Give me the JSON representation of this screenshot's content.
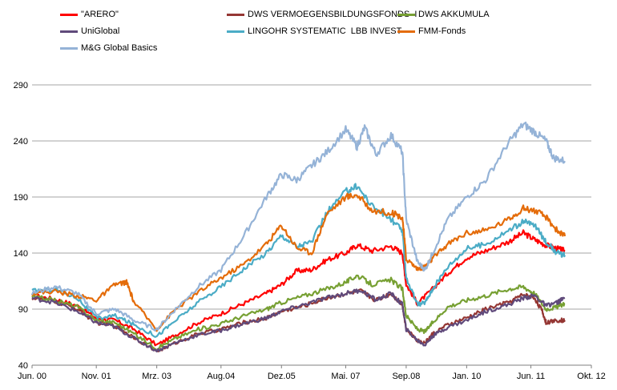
{
  "chart_data": {
    "type": "line",
    "title": "",
    "xlabel": "",
    "ylabel": "",
    "ylim": [
      40,
      300
    ],
    "yticks": [
      40,
      90,
      140,
      190,
      240,
      290
    ],
    "x_ticks": [
      {
        "label": "Jun. 00",
        "t": 0
      },
      {
        "label": "Nov. 01",
        "t": 17
      },
      {
        "label": "Mrz. 03",
        "t": 33
      },
      {
        "label": "Aug.04",
        "t": 50
      },
      {
        "label": "Dez.05",
        "t": 66
      },
      {
        "label": "Mai. 07",
        "t": 83
      },
      {
        "label": "Sep.08",
        "t": 99
      },
      {
        "label": "Jan. 10",
        "t": 115
      },
      {
        "label": "Jun. 11",
        "t": 132
      },
      {
        "label": "Okt. 12",
        "t": 148
      }
    ],
    "x_range": [
      0,
      148
    ],
    "grid": true,
    "legend_position": "top",
    "series": [
      {
        "name": "\"ARERO\"",
        "color": "#ff0000",
        "points": [
          [
            0,
            102
          ],
          [
            6,
            99
          ],
          [
            12,
            93
          ],
          [
            17,
            82
          ],
          [
            22,
            80
          ],
          [
            27,
            72
          ],
          [
            33,
            58
          ],
          [
            38,
            67
          ],
          [
            44,
            78
          ],
          [
            50,
            86
          ],
          [
            56,
            95
          ],
          [
            62,
            104
          ],
          [
            66,
            112
          ],
          [
            70,
            124
          ],
          [
            74,
            125
          ],
          [
            78,
            134
          ],
          [
            83,
            140
          ],
          [
            86,
            147
          ],
          [
            90,
            142
          ],
          [
            95,
            146
          ],
          [
            98,
            140
          ],
          [
            99,
            112
          ],
          [
            102,
            95
          ],
          [
            106,
            108
          ],
          [
            110,
            122
          ],
          [
            115,
            136
          ],
          [
            120,
            142
          ],
          [
            126,
            150
          ],
          [
            130,
            158
          ],
          [
            133,
            152
          ],
          [
            136,
            147
          ],
          [
            139,
            144
          ],
          [
            141,
            142
          ]
        ]
      },
      {
        "name": "DWS VERMOEGENSBILDUNGSFONDS  I",
        "color": "#953734",
        "points": [
          [
            0,
            100
          ],
          [
            6,
            97
          ],
          [
            12,
            90
          ],
          [
            17,
            78
          ],
          [
            22,
            75
          ],
          [
            27,
            65
          ],
          [
            33,
            52
          ],
          [
            38,
            60
          ],
          [
            44,
            68
          ],
          [
            50,
            72
          ],
          [
            56,
            78
          ],
          [
            62,
            82
          ],
          [
            66,
            88
          ],
          [
            72,
            93
          ],
          [
            78,
            100
          ],
          [
            83,
            104
          ],
          [
            87,
            106
          ],
          [
            91,
            98
          ],
          [
            95,
            104
          ],
          [
            98,
            94
          ],
          [
            99,
            72
          ],
          [
            102,
            62
          ],
          [
            104,
            60
          ],
          [
            106,
            68
          ],
          [
            110,
            76
          ],
          [
            115,
            82
          ],
          [
            120,
            90
          ],
          [
            126,
            96
          ],
          [
            130,
            103
          ],
          [
            133,
            100
          ],
          [
            135,
            88
          ],
          [
            136,
            78
          ],
          [
            139,
            80
          ],
          [
            141,
            80
          ]
        ]
      },
      {
        "name": "DWS AKKUMULA",
        "color": "#77a033",
        "points": [
          [
            0,
            101
          ],
          [
            6,
            98
          ],
          [
            12,
            92
          ],
          [
            17,
            80
          ],
          [
            22,
            78
          ],
          [
            27,
            68
          ],
          [
            33,
            55
          ],
          [
            38,
            64
          ],
          [
            44,
            72
          ],
          [
            50,
            77
          ],
          [
            56,
            84
          ],
          [
            62,
            90
          ],
          [
            66,
            96
          ],
          [
            72,
            102
          ],
          [
            78,
            108
          ],
          [
            83,
            114
          ],
          [
            86,
            120
          ],
          [
            90,
            112
          ],
          [
            95,
            116
          ],
          [
            98,
            108
          ],
          [
            99,
            84
          ],
          [
            102,
            72
          ],
          [
            104,
            70
          ],
          [
            106,
            78
          ],
          [
            110,
            92
          ],
          [
            115,
            98
          ],
          [
            120,
            102
          ],
          [
            126,
            108
          ],
          [
            130,
            110
          ],
          [
            133,
            104
          ],
          [
            136,
            90
          ],
          [
            139,
            92
          ],
          [
            141,
            95
          ]
        ]
      },
      {
        "name": "UniGlobal",
        "color": "#604a7b",
        "points": [
          [
            0,
            100
          ],
          [
            6,
            96
          ],
          [
            12,
            88
          ],
          [
            17,
            78
          ],
          [
            22,
            74
          ],
          [
            27,
            64
          ],
          [
            33,
            53
          ],
          [
            38,
            60
          ],
          [
            44,
            67
          ],
          [
            50,
            71
          ],
          [
            56,
            77
          ],
          [
            62,
            82
          ],
          [
            66,
            88
          ],
          [
            72,
            94
          ],
          [
            78,
            100
          ],
          [
            83,
            104
          ],
          [
            87,
            107
          ],
          [
            91,
            98
          ],
          [
            95,
            104
          ],
          [
            98,
            94
          ],
          [
            99,
            72
          ],
          [
            102,
            62
          ],
          [
            104,
            58
          ],
          [
            106,
            66
          ],
          [
            110,
            74
          ],
          [
            115,
            80
          ],
          [
            120,
            88
          ],
          [
            126,
            94
          ],
          [
            130,
            100
          ],
          [
            133,
            102
          ],
          [
            136,
            93
          ],
          [
            139,
            96
          ],
          [
            141,
            100
          ]
        ]
      },
      {
        "name": "LINGOHR SYSTEMATIC  LBB INVEST",
        "color": "#4bacc6",
        "points": [
          [
            0,
            106
          ],
          [
            6,
            108
          ],
          [
            12,
            100
          ],
          [
            17,
            82
          ],
          [
            22,
            84
          ],
          [
            27,
            76
          ],
          [
            33,
            66
          ],
          [
            38,
            80
          ],
          [
            44,
            96
          ],
          [
            50,
            110
          ],
          [
            56,
            126
          ],
          [
            62,
            140
          ],
          [
            66,
            156
          ],
          [
            70,
            146
          ],
          [
            74,
            150
          ],
          [
            78,
            176
          ],
          [
            83,
            195
          ],
          [
            86,
            200
          ],
          [
            90,
            182
          ],
          [
            95,
            170
          ],
          [
            98,
            160
          ],
          [
            99,
            118
          ],
          [
            102,
            94
          ],
          [
            104,
            96
          ],
          [
            106,
            108
          ],
          [
            110,
            128
          ],
          [
            115,
            144
          ],
          [
            120,
            148
          ],
          [
            126,
            160
          ],
          [
            130,
            168
          ],
          [
            133,
            165
          ],
          [
            136,
            150
          ],
          [
            139,
            140
          ],
          [
            141,
            138
          ]
        ]
      },
      {
        "name": "FMM-Fonds",
        "color": "#e46c0a",
        "points": [
          [
            0,
            104
          ],
          [
            6,
            106
          ],
          [
            12,
            102
          ],
          [
            17,
            98
          ],
          [
            22,
            112
          ],
          [
            25,
            114
          ],
          [
            27,
            96
          ],
          [
            33,
            72
          ],
          [
            38,
            90
          ],
          [
            44,
            105
          ],
          [
            50,
            118
          ],
          [
            56,
            130
          ],
          [
            62,
            148
          ],
          [
            66,
            165
          ],
          [
            70,
            145
          ],
          [
            74,
            140
          ],
          [
            78,
            175
          ],
          [
            83,
            190
          ],
          [
            86,
            192
          ],
          [
            90,
            178
          ],
          [
            95,
            176
          ],
          [
            98,
            172
          ],
          [
            99,
            135
          ],
          [
            102,
            126
          ],
          [
            104,
            128
          ],
          [
            106,
            135
          ],
          [
            110,
            148
          ],
          [
            115,
            158
          ],
          [
            120,
            160
          ],
          [
            126,
            170
          ],
          [
            130,
            180
          ],
          [
            133,
            178
          ],
          [
            136,
            172
          ],
          [
            139,
            160
          ],
          [
            141,
            155
          ]
        ]
      },
      {
        "name": "M&G Global Basics",
        "color": "#95b3d7",
        "points": [
          [
            0,
            104
          ],
          [
            6,
            110
          ],
          [
            12,
            104
          ],
          [
            17,
            86
          ],
          [
            22,
            90
          ],
          [
            27,
            80
          ],
          [
            33,
            72
          ],
          [
            38,
            90
          ],
          [
            44,
            110
          ],
          [
            50,
            125
          ],
          [
            56,
            155
          ],
          [
            62,
            190
          ],
          [
            66,
            210
          ],
          [
            70,
            205
          ],
          [
            74,
            218
          ],
          [
            78,
            230
          ],
          [
            83,
            250
          ],
          [
            86,
            235
          ],
          [
            88,
            252
          ],
          [
            91,
            228
          ],
          [
            95,
            245
          ],
          [
            98,
            230
          ],
          [
            99,
            170
          ],
          [
            102,
            132
          ],
          [
            104,
            125
          ],
          [
            106,
            140
          ],
          [
            110,
            170
          ],
          [
            115,
            190
          ],
          [
            120,
            205
          ],
          [
            126,
            238
          ],
          [
            130,
            255
          ],
          [
            133,
            248
          ],
          [
            136,
            240
          ],
          [
            138,
            225
          ],
          [
            141,
            222
          ]
        ]
      }
    ]
  }
}
